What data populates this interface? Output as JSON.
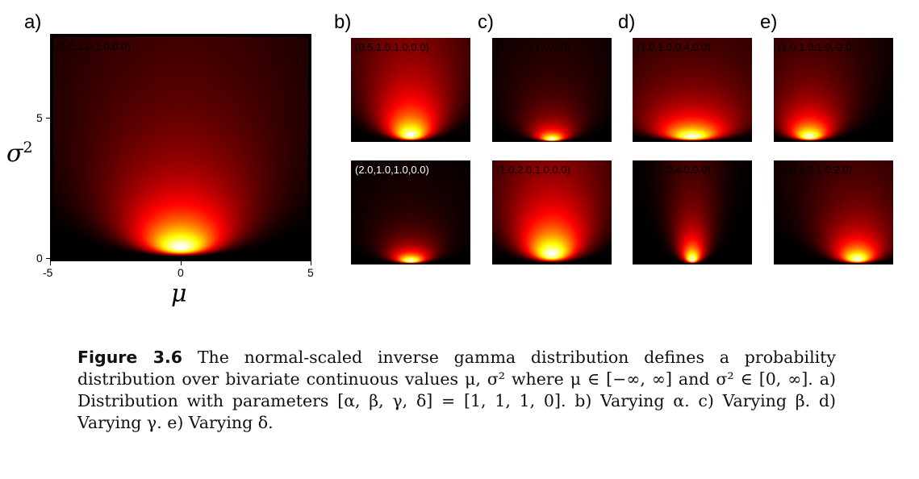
{
  "figure": {
    "panel_letters": {
      "a": "a)",
      "b": "b)",
      "c": "c)",
      "d": "d)",
      "e": "e)"
    },
    "axes": {
      "x_title": "μ",
      "y_title_base": "σ",
      "y_title_sup": "2",
      "x_ticks": [
        "-5",
        "0",
        "5"
      ],
      "y_ticks": [
        "5",
        "0"
      ]
    },
    "panels": {
      "a": {
        "label": "(1.0,1.0,1.0,0.0)",
        "alpha": 1.0,
        "beta": 1.0,
        "gamma": 1.0,
        "delta": 0.0
      },
      "b1": {
        "label": "(0.5,1.0,1.0,0.0)",
        "alpha": 0.5,
        "beta": 1.0,
        "gamma": 1.0,
        "delta": 0.0
      },
      "b2": {
        "label": "(2.0,1.0,1.0,0.0)",
        "alpha": 2.0,
        "beta": 1.0,
        "gamma": 1.0,
        "delta": 0.0
      },
      "c1": {
        "label": "(1.0,0.5,1.0,0.0)",
        "alpha": 1.0,
        "beta": 0.5,
        "gamma": 1.0,
        "delta": 0.0
      },
      "c2": {
        "label": "(1.0,2.0,1.0,0.0)",
        "alpha": 1.0,
        "beta": 2.0,
        "gamma": 1.0,
        "delta": 0.0
      },
      "d1": {
        "label": "(1.0,1.0,0.4,0.0)",
        "alpha": 1.0,
        "beta": 1.0,
        "gamma": 0.4,
        "delta": 0.0
      },
      "d2": {
        "label": "(1.0,1.0,4.0,0.0)",
        "alpha": 1.0,
        "beta": 1.0,
        "gamma": 4.0,
        "delta": 0.0
      },
      "e1": {
        "label": "(1.0,1.0,1.0,-2.0)",
        "alpha": 1.0,
        "beta": 1.0,
        "gamma": 1.0,
        "delta": -2.0
      },
      "e2": {
        "label": "(1.0,1.0,1.0,2.0)",
        "alpha": 1.0,
        "beta": 1.0,
        "gamma": 1.0,
        "delta": 2.0
      }
    }
  },
  "caption": {
    "label": "Figure 3.6",
    "text": " The normal-scaled inverse gamma distribution defines a probability distribution over bivariate continuous values μ, σ² where μ ∈ [−∞, ∞] and σ² ∈ [0, ∞]. a) Distribution with parameters [α, β, γ, δ] = [1, 1, 1, 0]. b) Varying α. c) Varying β. d) Varying γ. e) Varying δ."
  }
}
